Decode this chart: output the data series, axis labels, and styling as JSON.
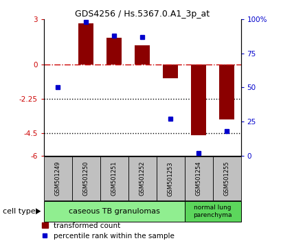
{
  "title": "GDS4256 / Hs.5367.0.A1_3p_at",
  "samples": [
    "GSM501249",
    "GSM501250",
    "GSM501251",
    "GSM501252",
    "GSM501253",
    "GSM501254",
    "GSM501255"
  ],
  "bar_values": [
    0.0,
    2.72,
    1.8,
    1.3,
    -0.9,
    -4.65,
    -3.6
  ],
  "percentile_values": [
    50,
    98,
    88,
    87,
    27,
    2,
    18
  ],
  "bar_color": "#8B0000",
  "percentile_color": "#0000CC",
  "ylim_left": [
    -6,
    3
  ],
  "ylim_right": [
    0,
    100
  ],
  "yticks_left": [
    3,
    0,
    -2.25,
    -4.5,
    -6
  ],
  "ytick_labels_left": [
    "3",
    "0",
    "-2.25",
    "-4.5",
    "-6"
  ],
  "yticks_right": [
    100,
    75,
    50,
    25,
    0
  ],
  "ytick_labels_right": [
    "100%",
    "75",
    "50",
    "25",
    "0"
  ],
  "hline_y": 0,
  "dotted_lines": [
    -2.25,
    -4.5
  ],
  "group1_label": "caseous TB granulomas",
  "group2_label": "normal lung\nparenchyma",
  "group1_samples": 5,
  "group2_samples": 2,
  "cell_type_label": "cell type",
  "legend_bar_label": "transformed count",
  "legend_dot_label": "percentile rank within the sample",
  "group1_color": "#90EE90",
  "group2_color": "#5CD65C",
  "sample_box_color": "#C0C0C0",
  "background_color": "#ffffff"
}
